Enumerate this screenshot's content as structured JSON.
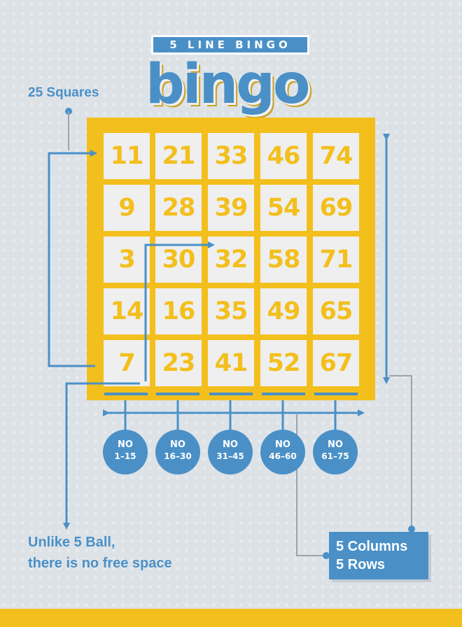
{
  "banner": {
    "subtitle": "5 LINE BINGO",
    "logo": "bingo"
  },
  "labels": {
    "squares": "25 Squares",
    "no_free_line1": "Unlike 5 Ball,",
    "no_free_line2": "there is no free space",
    "columns": "5 Columns",
    "rows": "5 Rows"
  },
  "grid": [
    [
      "11",
      "21",
      "33",
      "46",
      "74"
    ],
    [
      "9",
      "28",
      "39",
      "54",
      "69"
    ],
    [
      "3",
      "30",
      "32",
      "58",
      "71"
    ],
    [
      "14",
      "16",
      "35",
      "49",
      "65"
    ],
    [
      "7",
      "23",
      "41",
      "52",
      "67"
    ]
  ],
  "balls": [
    {
      "prefix": "NO",
      "range": "1–15"
    },
    {
      "prefix": "NO",
      "range": "16–30"
    },
    {
      "prefix": "NO",
      "range": "31–45"
    },
    {
      "prefix": "NO",
      "range": "46–60"
    },
    {
      "prefix": "NO",
      "range": "61–75"
    }
  ],
  "colors": {
    "blue": "#4a90c7",
    "yellow": "#f3bf1c",
    "cell": "#efefef",
    "background": "#dde2e7"
  }
}
